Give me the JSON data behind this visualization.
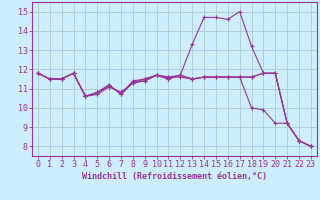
{
  "xlabel": "Windchill (Refroidissement éolien,°C)",
  "bg_color": "#cceeff",
  "grid_color": "#aacccc",
  "line_color": "#993399",
  "spine_color": "#993399",
  "xlim": [
    -0.5,
    23.5
  ],
  "ylim": [
    7.5,
    15.5
  ],
  "xticks": [
    0,
    1,
    2,
    3,
    4,
    5,
    6,
    7,
    8,
    9,
    10,
    11,
    12,
    13,
    14,
    15,
    16,
    17,
    18,
    19,
    20,
    21,
    22,
    23
  ],
  "yticks": [
    8,
    9,
    10,
    11,
    12,
    13,
    14,
    15
  ],
  "line1": [
    11.8,
    11.5,
    11.5,
    11.8,
    10.6,
    10.7,
    11.1,
    10.8,
    11.3,
    11.4,
    11.7,
    11.5,
    11.7,
    13.3,
    14.7,
    14.7,
    14.6,
    15.0,
    13.2,
    11.8,
    11.8,
    9.2,
    8.3,
    8.0
  ],
  "line2": [
    11.8,
    11.5,
    11.5,
    11.8,
    10.6,
    10.8,
    11.1,
    10.8,
    11.3,
    11.4,
    11.7,
    11.6,
    11.7,
    11.5,
    11.6,
    11.6,
    11.6,
    11.6,
    11.6,
    11.8,
    11.8,
    9.2,
    8.3,
    8.0
  ],
  "line3": [
    11.8,
    11.5,
    11.5,
    11.8,
    10.6,
    10.8,
    11.2,
    10.7,
    11.4,
    11.5,
    11.7,
    11.6,
    11.6,
    11.5,
    11.6,
    11.6,
    11.6,
    11.6,
    11.6,
    11.8,
    11.8,
    9.2,
    8.3,
    8.0
  ],
  "line4": [
    11.8,
    11.5,
    11.5,
    11.8,
    10.6,
    10.8,
    11.2,
    10.7,
    11.3,
    11.5,
    11.7,
    11.5,
    11.7,
    11.5,
    11.6,
    11.6,
    11.6,
    11.6,
    10.0,
    9.9,
    9.2,
    9.2,
    8.3,
    8.0
  ],
  "xlabel_fontsize": 6,
  "tick_fontsize": 6,
  "line_width": 0.8,
  "marker_size": 2.5
}
